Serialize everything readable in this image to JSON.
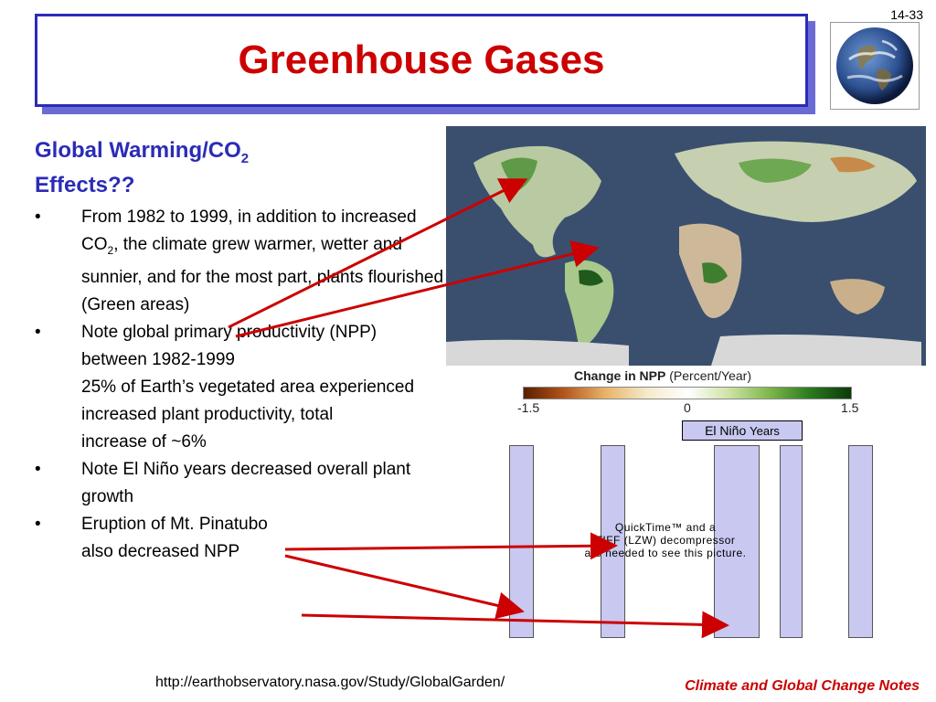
{
  "slide_number": "14-33",
  "title": "Greenhouse Gases",
  "heading": {
    "line1": "Global Warming/CO",
    "line1_sub": "2",
    "line2": "Effects??"
  },
  "bullets": [
    {
      "symbol": "•",
      "text_a": "From 1982 to 1999, in addition to increased CO",
      "sub": "2",
      "text_b": ", the climate grew warmer, wetter and sunnier, and for the most part, plants flourished (Green areas)"
    },
    {
      "symbol": "•",
      "line1": "Note global primary productivity (NPP) between 1982-1999",
      "line2": "25% of Earth’s vegetated area experienced increased plant productivity, total",
      "line3": "increase of ~6%"
    },
    {
      "symbol": "•",
      "text": "Note El Niño years decreased overall plant growth"
    },
    {
      "symbol": "•",
      "line1": "Eruption of Mt. Pinatubo",
      "line2": "also decreased NPP"
    }
  ],
  "legend": {
    "title": "Change in NPP",
    "unit": "(Percent/Year)",
    "ticks": [
      "-1.5",
      "0",
      "1.5"
    ]
  },
  "elnino_label": {
    "main": "El Niño",
    "small": "Years"
  },
  "quicktime_message": {
    "line1": "QuickTime™ and a",
    "line2": "TIFF (LZW) decompressor",
    "line3": "are needed to see this picture."
  },
  "source_url": "http://earthobservatory.nasa.gov/Study/GlobalGarden/",
  "footer_note": "Climate and Global Change Notes",
  "colors": {
    "title_red": "#cc0000",
    "heading_blue": "#2b2bb8",
    "arrow_red": "#cc0000",
    "bar_lavender": "#c8c8f0"
  }
}
